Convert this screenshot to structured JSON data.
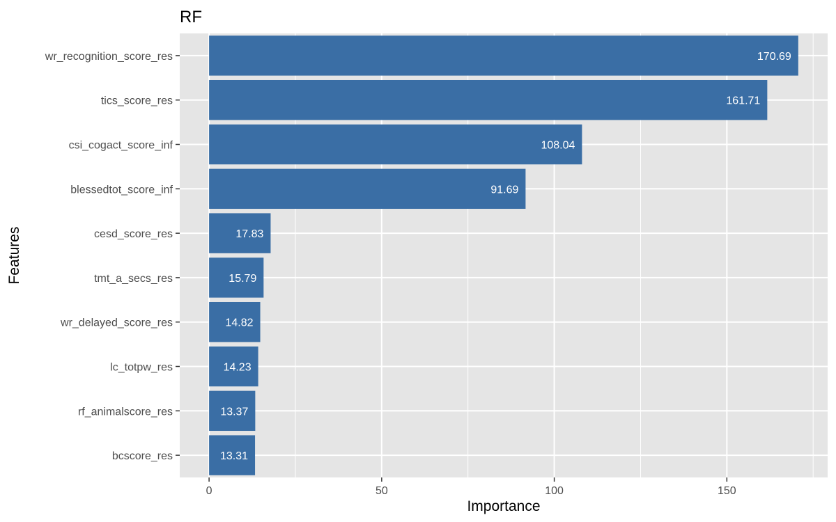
{
  "chart_data": {
    "type": "bar",
    "orientation": "horizontal",
    "title": "RF",
    "xlabel": "Importance",
    "ylabel": "Features",
    "categories": [
      "wr_recognition_score_res",
      "tics_score_res",
      "csi_cogact_score_inf",
      "blessedtot_score_inf",
      "cesd_score_res",
      "tmt_a_secs_res",
      "wr_delayed_score_res",
      "lc_totpw_res",
      "rf_animalscore_res",
      "bcscore_res"
    ],
    "values": [
      170.69,
      161.71,
      108.04,
      91.69,
      17.83,
      15.79,
      14.82,
      14.23,
      13.37,
      13.31
    ],
    "data_labels": [
      "170.69",
      "161.71",
      "108.04",
      "91.69",
      "17.83",
      "15.79",
      "14.82",
      "14.23",
      "13.37",
      "13.31"
    ],
    "xlim": [
      -8.5,
      179.2
    ],
    "xticks": [
      0,
      50,
      100,
      150
    ],
    "xtick_labels": [
      "0",
      "50",
      "100",
      "150"
    ],
    "grid": true,
    "legend": "none",
    "colors": {
      "bar": "#3a6ea5",
      "panel": "#e5e5e5",
      "grid": "#ffffff",
      "bar_label": "#ffffff",
      "tick_text": "#4d4d4d"
    }
  }
}
